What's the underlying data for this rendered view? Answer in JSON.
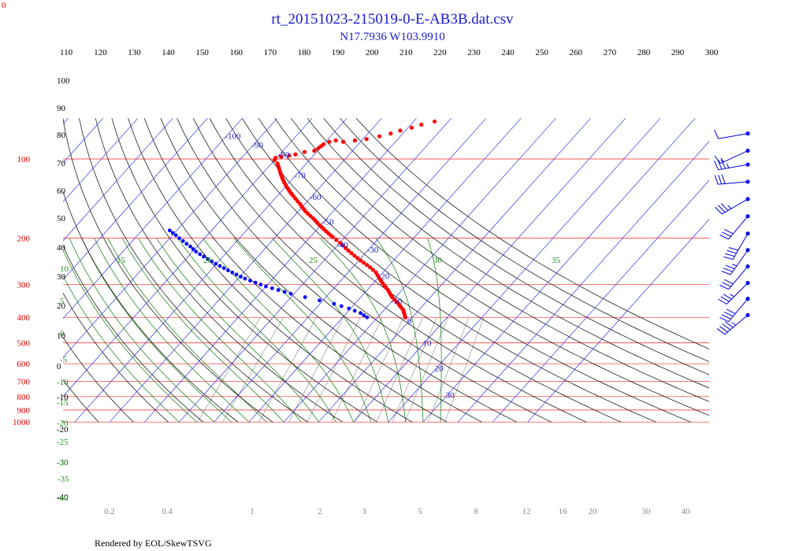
{
  "chart_data": {
    "type": "line",
    "title": "rt_20151023-215019-0-E-AB3B.dat.csv",
    "subtitle": "N17.7936 W103.9910",
    "footer": "Rendered by EOL/SkewTSVG",
    "corner_label": "0",
    "pressure_levels": [
      100,
      200,
      300,
      400,
      500,
      600,
      700,
      800,
      900,
      1000
    ],
    "pressure_ticks": [
      {
        "p": 100,
        "label": "100"
      },
      {
        "p": 200,
        "label": "200"
      },
      {
        "p": 300,
        "label": "300"
      },
      {
        "p": 400,
        "label": "400"
      },
      {
        "p": 500,
        "label": "500"
      },
      {
        "p": 600,
        "label": "600"
      },
      {
        "p": 700,
        "label": "700"
      },
      {
        "p": 800,
        "label": "800"
      },
      {
        "p": 900,
        "label": "900"
      },
      {
        "p": 1000,
        "label": "1000"
      }
    ],
    "isotherms_c": [
      -100,
      -90,
      -80,
      -70,
      -60,
      -50,
      -40,
      -30,
      -20,
      -10,
      0,
      10,
      20,
      30
    ],
    "isotherm_labels": [
      {
        "t": -100,
        "label": "-100",
        "p": 85
      },
      {
        "t": -90,
        "label": "-90",
        "p": 92
      },
      {
        "t": -80,
        "label": "-80",
        "p": 100
      },
      {
        "t": -70,
        "label": "-70",
        "p": 120
      },
      {
        "t": -60,
        "label": "-60",
        "p": 145
      },
      {
        "t": -50,
        "label": "-50",
        "p": 180
      },
      {
        "t": -40,
        "label": "-40",
        "p": 220
      },
      {
        "t": -30,
        "label": "-30",
        "p": 230
      },
      {
        "t": -20,
        "label": "-20",
        "p": 290
      },
      {
        "t": -10,
        "label": "-10",
        "p": 360
      },
      {
        "t": 0,
        "label": "0",
        "p": 430
      },
      {
        "t": 10,
        "label": "10",
        "p": 520
      },
      {
        "t": 20,
        "label": "20",
        "p": 650
      },
      {
        "t": 30,
        "label": "30",
        "p": 820
      }
    ],
    "dry_adiabats_k": [
      110,
      120,
      130,
      140,
      150,
      160,
      170,
      180,
      190,
      200,
      210,
      220,
      230,
      240,
      250,
      260,
      270,
      280,
      290,
      300
    ],
    "dry_adiabat_labels": [
      "110",
      "120",
      "130",
      "140",
      "150",
      "160",
      "170",
      "180",
      "190",
      "200",
      "210",
      "220",
      "230",
      "240",
      "250",
      "260",
      "270",
      "280",
      "290",
      "300"
    ],
    "left_adiabat_labels": [
      "100",
      "90",
      "80",
      "70",
      "60",
      "50",
      "40",
      "30",
      "20",
      "10",
      "0",
      "-10",
      "-20",
      "-30",
      "-40"
    ],
    "moist_adiabats_c": [
      -40,
      -35,
      -30,
      -25,
      -20,
      -15,
      -10,
      -5,
      0,
      5,
      10,
      15,
      20,
      25,
      30,
      35
    ],
    "moist_adiabat_labels": [
      "-40",
      "-35",
      "-30",
      "-25",
      "-20",
      "-15",
      "-10",
      "-5",
      "0",
      "5",
      "10",
      "15",
      "20",
      "25",
      "30",
      "35"
    ],
    "mixing_ratios_gkg": [
      0.2,
      0.4,
      1,
      2,
      3,
      5,
      8,
      12,
      16,
      20,
      30,
      40
    ],
    "mixing_ratio_labels": [
      "0.2",
      "0.4",
      "1",
      "2",
      "3",
      "5",
      "8",
      "12",
      "16",
      "20",
      "30",
      "40"
    ],
    "series": [
      {
        "name": "",
        "color": "#ff0000",
        "points": [
          [
            400,
            -2.0
          ],
          [
            390,
            -3.0
          ],
          [
            375,
            -4.5
          ],
          [
            355,
            -7.5
          ],
          [
            335,
            -11.0
          ],
          [
            315,
            -14.0
          ],
          [
            290,
            -18.5
          ],
          [
            270,
            -22.0
          ],
          [
            258,
            -25.0
          ],
          [
            248,
            -28.0
          ],
          [
            238,
            -31.0
          ],
          [
            228,
            -34.0
          ],
          [
            218,
            -37.0
          ],
          [
            208,
            -40.0
          ],
          [
            198,
            -43.5
          ],
          [
            188,
            -47.0
          ],
          [
            178,
            -50.5
          ],
          [
            168,
            -54.0
          ],
          [
            158,
            -58.0
          ],
          [
            148,
            -61.5
          ],
          [
            138,
            -65.5
          ],
          [
            128,
            -69.5
          ],
          [
            120,
            -72.5
          ],
          [
            113,
            -75.0
          ],
          [
            108,
            -76.8
          ],
          [
            104,
            -78.3
          ],
          [
            101,
            -80.0
          ],
          [
            99,
            -80.3
          ],
          [
            98,
            -79.0
          ],
          [
            97,
            -77.0
          ],
          [
            96,
            -75.5
          ],
          [
            94,
            -73.5
          ],
          [
            93,
            -71.0
          ],
          [
            91,
            -70.5
          ],
          [
            88,
            -70.0
          ],
          [
            86,
            -69.0
          ],
          [
            85,
            -67.5
          ],
          [
            86,
            -65.0
          ],
          [
            85,
            -62.0
          ],
          [
            84,
            -59.0
          ],
          [
            82,
            -56.0
          ],
          [
            80,
            -53.5
          ],
          [
            78,
            -51.5
          ],
          [
            76,
            -49.0
          ],
          [
            74,
            -47.0
          ],
          [
            72,
            -44.0
          ]
        ]
      },
      {
        "name": "",
        "color": "#0000ff",
        "points": [
          [
            400,
            -13.0
          ],
          [
            385,
            -16.0
          ],
          [
            370,
            -20.5
          ],
          [
            355,
            -26.0
          ],
          [
            345,
            -31.0
          ],
          [
            335,
            -36.0
          ],
          [
            325,
            -41.0
          ],
          [
            315,
            -45.5
          ],
          [
            305,
            -50.0
          ],
          [
            295,
            -54.0
          ],
          [
            285,
            -58.0
          ],
          [
            275,
            -61.5
          ],
          [
            265,
            -65.0
          ],
          [
            255,
            -68.5
          ],
          [
            245,
            -72.0
          ],
          [
            235,
            -75.5
          ],
          [
            225,
            -79.0
          ],
          [
            215,
            -82.0
          ],
          [
            205,
            -85.5
          ],
          [
            195,
            -89.0
          ],
          [
            187,
            -92.0
          ]
        ]
      }
    ],
    "wind_barbs": [
      {
        "p": 80,
        "dir": 260,
        "speed": 10
      },
      {
        "p": 93,
        "dir": 245,
        "speed": 15
      },
      {
        "p": 105,
        "dir": 260,
        "speed": 35
      },
      {
        "p": 122,
        "dir": 265,
        "speed": 30
      },
      {
        "p": 142,
        "dir": 240,
        "speed": 35
      },
      {
        "p": 165,
        "dir": 220,
        "speed": 30
      },
      {
        "p": 192,
        "dir": 210,
        "speed": 40
      },
      {
        "p": 222,
        "dir": 215,
        "speed": 35
      },
      {
        "p": 256,
        "dir": 220,
        "speed": 30
      },
      {
        "p": 296,
        "dir": 225,
        "speed": 35
      },
      {
        "p": 340,
        "dir": 220,
        "speed": 40
      },
      {
        "p": 392,
        "dir": 230,
        "speed": 45
      }
    ],
    "colors": {
      "isobar": "#ff2020",
      "isotherm": "#3333dd",
      "dry_adiabat": "#000000",
      "moist_adiabat": "#228b22",
      "mixing_ratio": "#999999",
      "title": "#1a1ad0",
      "pressure_label": "#dd0000",
      "isotherm_label": "#2222cc",
      "moist_label": "#228b22",
      "mixing_label": "#888888",
      "barb": "#0000dd"
    },
    "grid": true,
    "legend": "none"
  }
}
